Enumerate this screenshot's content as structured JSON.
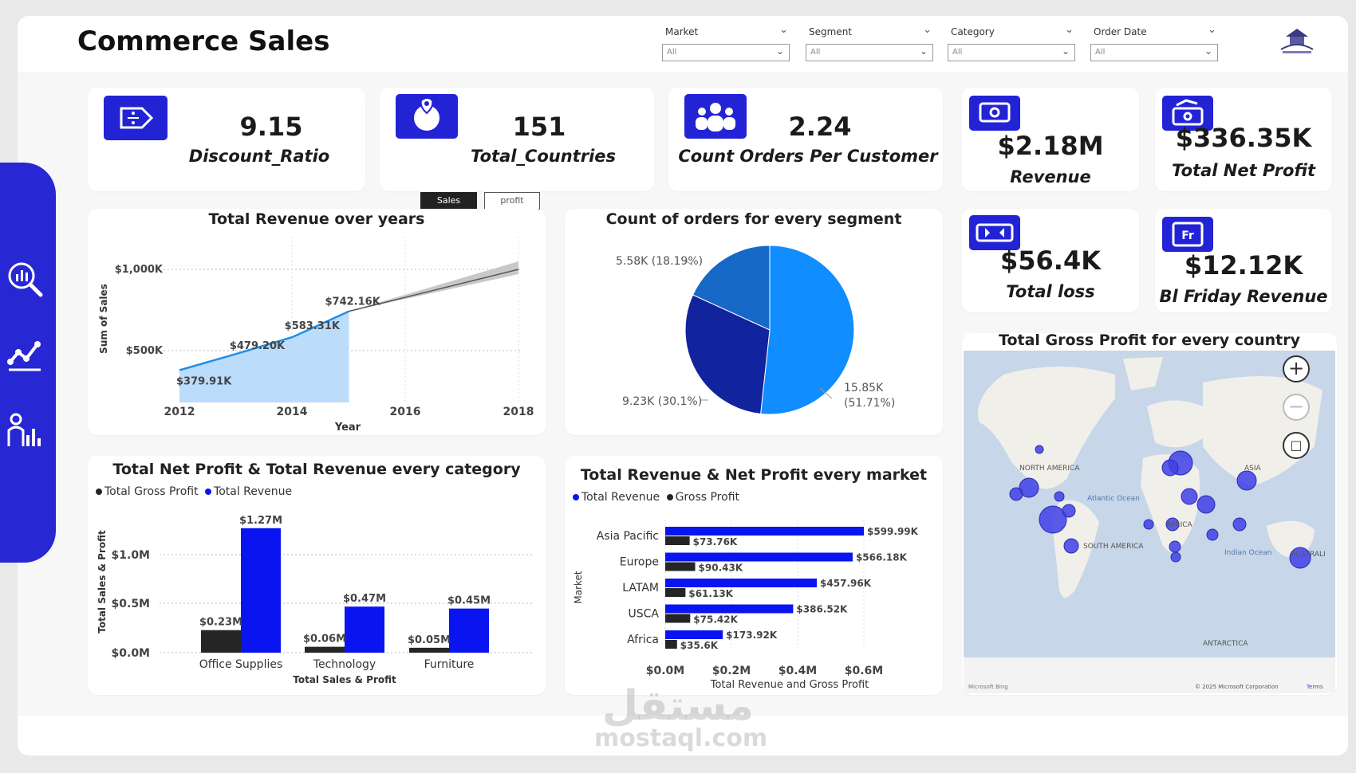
{
  "header": {
    "title": "Commerce Sales"
  },
  "slicers": [
    {
      "label": "Market",
      "value": "All"
    },
    {
      "label": "Segment",
      "value": "All"
    },
    {
      "label": "Category",
      "value": "All"
    },
    {
      "label": "Order Date",
      "value": "All"
    }
  ],
  "sidebar": {
    "icons": [
      "analytics-search-icon",
      "line-chart-icon",
      "people-chart-icon"
    ]
  },
  "kpis": {
    "discount": {
      "value": "9.15",
      "label": "Discount_Ratio"
    },
    "countries": {
      "value": "151",
      "label": "Total_Countries"
    },
    "orders": {
      "value": "2.24",
      "label": "Count Orders Per Customer"
    },
    "revenue": {
      "value": "$2.18M",
      "label": "Revenue"
    },
    "net_profit": {
      "value": "$336.35K",
      "label": "Total Net Profit"
    },
    "loss": {
      "value": "$56.4K",
      "label": "Total loss"
    },
    "bf_revenue": {
      "value": "$12.12K",
      "label": "Bl Friday Revenue"
    }
  },
  "toggle": {
    "sales": "Sales",
    "profit": "profit"
  },
  "charts": {
    "line": {
      "title": "Total Revenue over years",
      "ylabel": "Sum of Sales",
      "xlabel": "Year",
      "yticks": [
        "$1,000K",
        "$500K"
      ],
      "xticks": [
        "2012",
        "2014",
        "2016",
        "2018"
      ],
      "labels": [
        "$379.91K",
        "$479.20K",
        "$583.31K",
        "$742.16K"
      ]
    },
    "pie": {
      "title": "Count of orders for every segment",
      "labels": [
        "5.58K (18.19%)",
        "9.23K (30.1%)",
        "15.85K",
        "(51.71%)"
      ]
    },
    "category": {
      "title": "Total Net Profit & Total Revenue every category",
      "legend": [
        "Total Gross Profit",
        "Total Revenue"
      ],
      "ylabel": "Total Sales & Profit",
      "xlabel": "Total Sales & Profit",
      "yticks": [
        "$1.0M",
        "$0.5M",
        "$0.0M"
      ],
      "categories": [
        "Office Supplies",
        "Technology",
        "Furniture"
      ],
      "profit_labels": [
        "$0.23M",
        "$0.06M",
        "$0.05M"
      ],
      "revenue_labels": [
        "$1.27M",
        "$0.47M",
        "$0.45M"
      ]
    },
    "market": {
      "title": "Total Revenue & Net Profit every market",
      "legend": [
        "Total Revenue",
        "Gross Profit"
      ],
      "ylabel": "Market",
      "xlabel": "Total Revenue and Gross Profit",
      "xticks": [
        "$0.0M",
        "$0.2M",
        "$0.4M",
        "$0.6M"
      ],
      "markets": [
        "Asia Pacific",
        "Europe",
        "LATAM",
        "USCA",
        "Africa"
      ],
      "revenue_labels": [
        "$599.99K",
        "$566.18K",
        "$457.96K",
        "$386.52K",
        "$173.92K"
      ],
      "profit_labels": [
        "$73.76K",
        "$90.43K",
        "$61.13K",
        "$75.42K",
        "$35.6K"
      ]
    },
    "map": {
      "title": "Total Gross Profit for every country",
      "regions": [
        "NORTH AMERICA",
        "ASIA",
        "Atlantic Ocean",
        "AFRICA",
        "SOUTH AMERICA",
        "Indian Ocean",
        "AUSTRALI",
        "ANTARCTICA"
      ],
      "footer_left": "Microsoft Bing",
      "footer_right": "© 2025 Microsoft Corporation",
      "terms": "Terms"
    }
  },
  "chart_data": [
    {
      "type": "line",
      "title": "Total Revenue over years",
      "xlabel": "Year",
      "ylabel": "Sum of Sales",
      "x": [
        2012,
        2013,
        2014,
        2015
      ],
      "values": [
        379.91,
        479.2,
        583.31,
        742.16
      ],
      "units": "K USD",
      "forecast_to": 2018,
      "xlim": [
        2012,
        2018
      ],
      "ylim_ticks": [
        500,
        1000
      ]
    },
    {
      "type": "pie",
      "title": "Count of orders for every segment",
      "slices": [
        {
          "value": 15.85,
          "percent": 51.71,
          "color": "#118dff"
        },
        {
          "value": 9.23,
          "percent": 30.1,
          "color": "#12239e"
        },
        {
          "value": 5.58,
          "percent": 18.19,
          "color": "#1769c7"
        }
      ]
    },
    {
      "type": "bar",
      "title": "Total Net Profit & Total Revenue every category",
      "categories": [
        "Office Supplies",
        "Technology",
        "Furniture"
      ],
      "series": [
        {
          "name": "Total Gross Profit",
          "values": [
            0.23,
            0.06,
            0.05
          ],
          "color": "#252525"
        },
        {
          "name": "Total Revenue",
          "values": [
            1.27,
            0.47,
            0.45
          ],
          "color": "#0a14f0"
        }
      ],
      "units": "M USD",
      "ylim": [
        0,
        1.3
      ]
    },
    {
      "type": "bar",
      "orientation": "horizontal",
      "title": "Total Revenue & Net Profit every market",
      "categories": [
        "Asia Pacific",
        "Europe",
        "LATAM",
        "USCA",
        "Africa"
      ],
      "series": [
        {
          "name": "Total Revenue",
          "values": [
            599.99,
            566.18,
            457.96,
            386.52,
            173.92
          ],
          "color": "#0a14f0"
        },
        {
          "name": "Gross Profit",
          "values": [
            73.76,
            90.43,
            61.13,
            75.42,
            35.6
          ],
          "color": "#252525"
        }
      ],
      "units": "K USD",
      "xlim": [
        0,
        600
      ]
    }
  ]
}
